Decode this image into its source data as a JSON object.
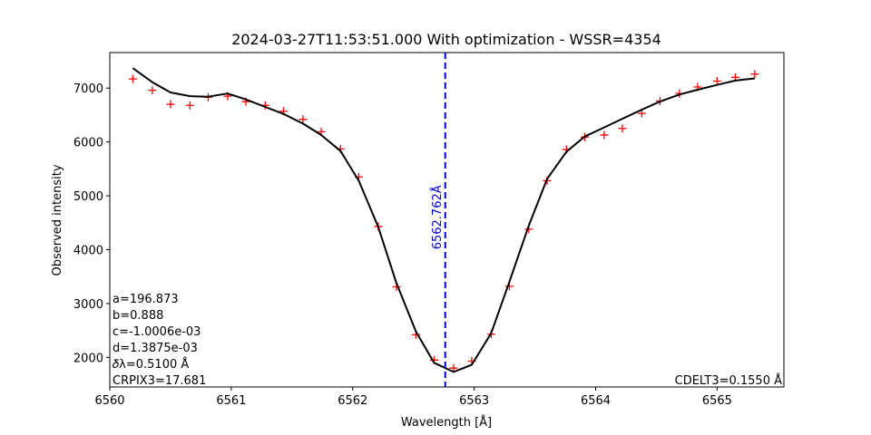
{
  "chart_data": {
    "type": "line",
    "title": "2024-03-27T11:53:51.000 With optimization - WSSR=4354",
    "xlabel": "Wavelength [Å]",
    "ylabel": "Observed intensity",
    "xlim": [
      6560.0,
      6565.55
    ],
    "ylim": [
      1450,
      7660
    ],
    "xticks": [
      6560,
      6561,
      6562,
      6563,
      6564,
      6565
    ],
    "yticks": [
      2000,
      3000,
      4000,
      5000,
      6000,
      7000
    ],
    "grid": false,
    "series": [
      {
        "style": "markers",
        "marker": "+",
        "color": "#ff0000",
        "x": [
          6560.19,
          6560.35,
          6560.5,
          6560.66,
          6560.81,
          6560.97,
          6561.12,
          6561.28,
          6561.43,
          6561.59,
          6561.74,
          6561.9,
          6562.05,
          6562.21,
          6562.36,
          6562.52,
          6562.67,
          6562.83,
          6562.98,
          6563.14,
          6563.29,
          6563.45,
          6563.6,
          6563.76,
          6563.91,
          6564.07,
          6564.22,
          6564.38,
          6564.53,
          6564.69,
          6564.84,
          6565.0,
          6565.15,
          6565.31
        ],
        "y": [
          7170,
          6960,
          6700,
          6680,
          6830,
          6850,
          6750,
          6680,
          6570,
          6420,
          6190,
          5870,
          5350,
          4430,
          3310,
          2420,
          1950,
          1800,
          1930,
          2430,
          3320,
          4380,
          5280,
          5860,
          6090,
          6130,
          6250,
          6530,
          6760,
          6900,
          7020,
          7130,
          7200,
          7260
        ]
      },
      {
        "style": "line",
        "color": "#000000",
        "x": [
          6560.19,
          6560.35,
          6560.5,
          6560.66,
          6560.81,
          6560.97,
          6561.12,
          6561.28,
          6561.43,
          6561.59,
          6561.74,
          6561.9,
          6562.05,
          6562.21,
          6562.36,
          6562.52,
          6562.67,
          6562.83,
          6562.98,
          6563.14,
          6563.29,
          6563.45,
          6563.6,
          6563.76,
          6563.91,
          6564.07,
          6564.22,
          6564.38,
          6564.53,
          6564.69,
          6564.84,
          6565.0,
          6565.15,
          6565.31
        ],
        "y": [
          7370,
          7110,
          6920,
          6850,
          6840,
          6900,
          6790,
          6650,
          6520,
          6340,
          6130,
          5830,
          5280,
          4420,
          3380,
          2480,
          1900,
          1730,
          1860,
          2450,
          3400,
          4450,
          5310,
          5820,
          6100,
          6270,
          6430,
          6600,
          6750,
          6880,
          6970,
          7060,
          7140,
          7180
        ]
      }
    ],
    "vline": {
      "x": 6562.762,
      "label": "6562.762Å",
      "color": "#0000cc",
      "style": "dashed"
    },
    "annotations_left": [
      "a=196.873",
      "b=0.888",
      "c=-1.0006e-03",
      "d=1.3875e-03",
      "𝛿λ=0.5100 Å",
      "CRPIX3=17.681"
    ],
    "annotation_right": "CDELT3=0.1550 Å"
  }
}
